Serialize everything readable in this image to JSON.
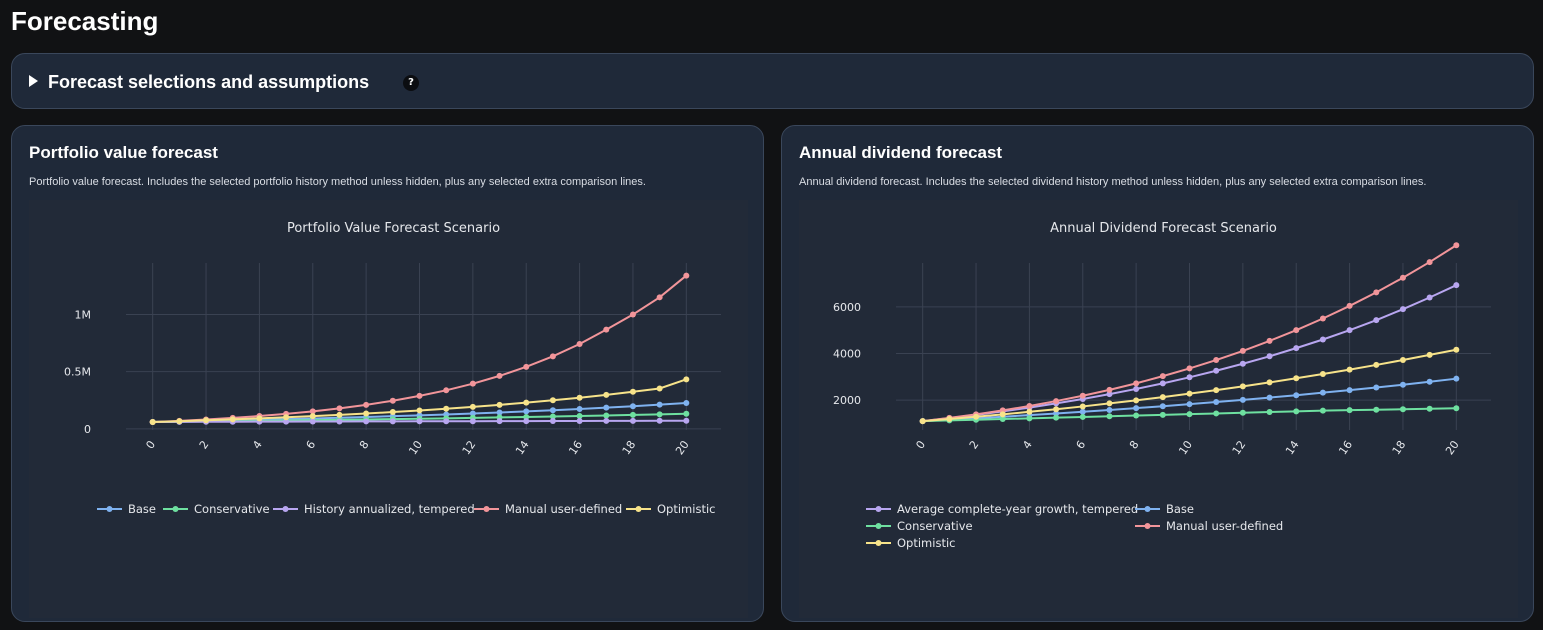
{
  "page": {
    "title": "Forecasting"
  },
  "assumptions": {
    "label": "Forecast selections and assumptions",
    "help_glyph": "?"
  },
  "portfolio_card": {
    "title": "Portfolio value forecast",
    "description": "Portfolio value forecast. Includes the selected portfolio history method unless hidden, plus any selected extra comparison lines."
  },
  "dividend_card": {
    "title": "Annual dividend forecast",
    "description": "Annual dividend forecast. Includes the selected dividend history method unless hidden, plus any selected extra comparison lines."
  },
  "colors": {
    "base": "#7fb2f0",
    "conservative": "#6ee0a0",
    "history": "#b8a6f0",
    "manual": "#f2959a",
    "optimistic": "#f7e38a",
    "grid": "#3a4252"
  },
  "chart_data": [
    {
      "type": "line",
      "title": "Portfolio Value Forecast Scenario",
      "xlabel": "",
      "ylabel": "",
      "x": [
        0,
        1,
        2,
        3,
        4,
        5,
        6,
        7,
        8,
        9,
        10,
        11,
        12,
        13,
        14,
        15,
        16,
        17,
        18,
        19,
        20
      ],
      "x_ticks": [
        0,
        2,
        4,
        6,
        8,
        10,
        12,
        14,
        16,
        18,
        20
      ],
      "y_ticks": [
        {
          "value": 0,
          "label": "0"
        },
        {
          "value": 500000,
          "label": "0.5M"
        },
        {
          "value": 1000000,
          "label": "1M"
        }
      ],
      "ylim": [
        -10000,
        1450000
      ],
      "xlim": [
        -1.0,
        21.3
      ],
      "grid": true,
      "legend_placement": "bottom, single row",
      "series": [
        {
          "name": "Base",
          "color_key": "base",
          "values": [
            60000,
            64000,
            69000,
            74000,
            79000,
            85000,
            91000,
            97000,
            104000,
            111000,
            118000,
            126000,
            134000,
            143000,
            153000,
            163000,
            174000,
            186000,
            198000,
            212000,
            226000
          ]
        },
        {
          "name": "Conservative",
          "color_key": "conservative",
          "values": [
            60000,
            62000,
            64000,
            67000,
            70000,
            73000,
            76000,
            79000,
            82000,
            85000,
            88000,
            92000,
            96000,
            100000,
            104000,
            108000,
            112000,
            117000,
            122000,
            127000,
            132000
          ]
        },
        {
          "name": "History annualized, tempered",
          "color_key": "history",
          "values": [
            60000,
            61000,
            62000,
            62500,
            63000,
            63500,
            64000,
            64500,
            65000,
            65500,
            66000,
            66500,
            67000,
            67500,
            68000,
            68500,
            69000,
            69500,
            70000,
            70500,
            71000
          ]
        },
        {
          "name": "Manual user-defined",
          "color_key": "manual",
          "values": [
            60000,
            70000,
            82000,
            96000,
            112000,
            131000,
            153000,
            179000,
            210000,
            246000,
            288000,
            337000,
            395000,
            463000,
            542000,
            634000,
            742000,
            868000,
            1000000,
            1150000,
            1340000
          ]
        },
        {
          "name": "Optimistic",
          "color_key": "optimistic",
          "values": [
            60000,
            67000,
            75000,
            83000,
            92000,
            101000,
            111000,
            122000,
            134000,
            147000,
            161000,
            176000,
            192000,
            210000,
            229000,
            250000,
            272000,
            297000,
            324000,
            353000,
            433000
          ]
        }
      ]
    },
    {
      "type": "line",
      "title": "Annual Dividend Forecast Scenario",
      "xlabel": "",
      "ylabel": "",
      "x": [
        0,
        1,
        2,
        3,
        4,
        5,
        6,
        7,
        8,
        9,
        10,
        11,
        12,
        13,
        14,
        15,
        16,
        17,
        18,
        19,
        20
      ],
      "x_ticks": [
        0,
        2,
        4,
        6,
        8,
        10,
        12,
        14,
        16,
        18,
        20
      ],
      "y_ticks": [
        {
          "value": 2000,
          "label": "2000"
        },
        {
          "value": 4000,
          "label": "4000"
        },
        {
          "value": 6000,
          "label": "6000"
        }
      ],
      "ylim": [
        720,
        7880
      ],
      "xlim": [
        -1.0,
        21.3
      ],
      "grid": true,
      "legend_placement": "bottom, two columns",
      "series": [
        {
          "name": "Average complete-year growth, tempered",
          "color_key": "history",
          "values": [
            1100,
            1230,
            1370,
            1520,
            1680,
            1860,
            2050,
            2260,
            2480,
            2720,
            2980,
            3260,
            3560,
            3880,
            4230,
            4600,
            5000,
            5430,
            5900,
            6400,
            6930
          ]
        },
        {
          "name": "Base",
          "color_key": "base",
          "values": [
            1100,
            1160,
            1220,
            1290,
            1360,
            1430,
            1500,
            1580,
            1660,
            1740,
            1830,
            1920,
            2010,
            2110,
            2210,
            2320,
            2430,
            2540,
            2660,
            2790,
            2920
          ]
        },
        {
          "name": "Conservative",
          "color_key": "conservative",
          "values": [
            1100,
            1130,
            1160,
            1190,
            1220,
            1250,
            1280,
            1310,
            1340,
            1370,
            1400,
            1430,
            1460,
            1490,
            1520,
            1550,
            1570,
            1590,
            1610,
            1630,
            1650
          ]
        },
        {
          "name": "Manual user-defined",
          "color_key": "manual",
          "values": [
            1100,
            1240,
            1390,
            1560,
            1750,
            1960,
            2190,
            2440,
            2720,
            3030,
            3360,
            3720,
            4110,
            4540,
            5000,
            5500,
            6040,
            6620,
            7250,
            7920,
            8640
          ]
        },
        {
          "name": "Optimistic",
          "color_key": "optimistic",
          "values": [
            1100,
            1190,
            1290,
            1390,
            1500,
            1610,
            1730,
            1860,
            1990,
            2130,
            2280,
            2430,
            2590,
            2760,
            2940,
            3120,
            3310,
            3510,
            3720,
            3940,
            4160
          ]
        }
      ]
    }
  ]
}
